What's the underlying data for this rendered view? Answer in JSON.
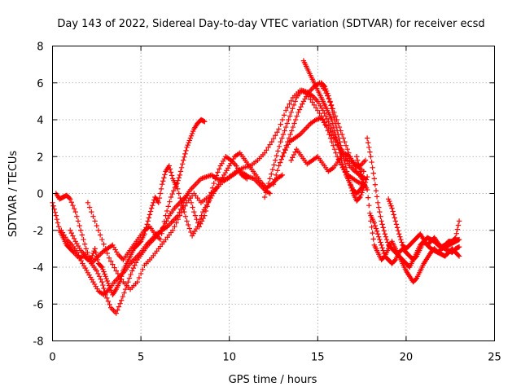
{
  "chart_data": {
    "type": "scatter",
    "title": "Day 143 of 2022, Sidereal Day-to-day VTEC variation (SDTVAR) for receiver ecsd",
    "xlabel": "GPS time / hours",
    "ylabel": "SDTVAR / TECUs",
    "xlim": [
      0,
      25
    ],
    "ylim": [
      -8,
      8
    ],
    "xticks": [
      "0",
      "5",
      "10",
      "15",
      "20",
      "25"
    ],
    "yticks": [
      "-8",
      "-6",
      "-4",
      "-2",
      "0",
      "2",
      "4",
      "6",
      "8"
    ],
    "grid": true,
    "marker": "+",
    "color": "#ff0000",
    "series": [
      {
        "x": [
          0.0,
          0.2,
          0.4,
          0.6,
          0.8,
          1.0,
          1.2,
          1.5,
          1.8,
          2.0,
          2.2,
          2.4,
          2.6,
          2.8,
          3.0,
          3.2,
          3.4,
          3.6,
          3.8,
          4.0,
          4.2,
          4.4,
          4.6,
          4.8,
          5.0,
          5.2,
          5.4,
          5.6,
          5.8,
          6.0,
          6.2,
          6.4,
          6.6,
          6.8,
          7.0,
          7.2,
          7.4,
          7.6,
          7.8,
          8.0,
          8.2,
          8.4,
          8.6
        ],
        "y": [
          -0.5,
          -1.2,
          -2.0,
          -2.4,
          -2.8,
          -3.0,
          -3.2,
          -3.5,
          -3.4,
          -3.6,
          -3.5,
          -3.0,
          -3.8,
          -4.0,
          -4.5,
          -5.0,
          -5.5,
          -5.2,
          -4.8,
          -4.2,
          -3.8,
          -3.4,
          -3.0,
          -2.8,
          -2.6,
          -2.2,
          -1.5,
          -0.8,
          -0.2,
          -0.5,
          0.5,
          1.2,
          1.5,
          0.8,
          0.4,
          1.0,
          1.8,
          2.5,
          3.0,
          3.5,
          3.8,
          4.0,
          3.9
        ]
      },
      {
        "x": [
          0.2,
          0.4,
          0.6,
          0.8,
          1.0,
          1.3,
          1.6,
          1.9,
          2.2,
          2.5,
          2.8,
          3.0,
          3.3,
          3.6,
          3.9,
          4.2,
          4.5,
          4.8,
          5.1,
          5.4,
          5.7,
          6.0,
          6.3,
          6.6,
          6.9,
          7.2,
          7.5,
          7.8,
          8.1,
          8.4,
          8.7,
          9.0,
          9.3,
          9.6,
          9.9,
          10.2,
          10.5,
          10.8,
          11.1,
          11.4,
          11.7,
          12.0,
          12.3
        ],
        "y": [
          0.0,
          -0.3,
          -0.2,
          -0.1,
          -0.3,
          -1.0,
          -2.0,
          -3.0,
          -3.8,
          -4.2,
          -4.8,
          -5.5,
          -6.2,
          -6.5,
          -5.8,
          -5.0,
          -4.2,
          -3.6,
          -3.2,
          -2.8,
          -2.5,
          -2.2,
          -1.8,
          -1.2,
          -0.8,
          -0.5,
          -0.2,
          0.2,
          0.5,
          0.8,
          0.9,
          1.0,
          0.8,
          0.7,
          0.8,
          1.0,
          1.2,
          1.1,
          0.9,
          0.8,
          0.5,
          0.2,
          0.0
        ]
      },
      {
        "x": [
          0.5,
          0.8,
          1.1,
          1.4,
          1.7,
          2.0,
          2.3,
          2.6,
          2.9,
          3.2,
          3.5,
          3.8,
          4.1,
          4.4,
          4.7,
          5.0,
          5.3,
          5.6,
          5.9,
          6.2,
          6.5,
          6.8,
          7.1,
          7.4,
          7.7,
          8.0,
          8.3,
          8.6,
          8.9,
          9.2,
          9.5,
          9.8,
          10.1,
          10.4,
          10.7,
          11.0
        ],
        "y": [
          -2.0,
          -2.5,
          -2.8,
          -3.2,
          -3.8,
          -4.3,
          -4.8,
          -5.3,
          -5.5,
          -5.2,
          -4.8,
          -4.5,
          -4.2,
          -3.8,
          -3.5,
          -3.2,
          -2.8,
          -2.5,
          -2.2,
          -2.0,
          -1.8,
          -1.5,
          -1.2,
          -0.5,
          0.0,
          -1.0,
          -1.8,
          -1.2,
          -0.2,
          0.8,
          1.5,
          2.0,
          1.8,
          1.5,
          1.0,
          0.8
        ]
      },
      {
        "x": [
          1.0,
          1.3,
          1.6,
          1.9,
          2.2,
          2.5,
          2.8,
          3.1,
          3.4,
          3.7,
          4.0,
          4.3,
          4.6,
          4.9,
          5.2,
          5.5,
          5.8,
          6.1,
          6.4,
          6.7,
          7.0,
          7.3,
          7.6,
          7.9,
          8.2,
          8.5,
          8.8,
          9.1,
          9.4,
          9.7,
          10.0,
          10.3,
          10.6,
          10.9,
          11.2,
          11.5,
          11.8,
          12.1,
          12.4,
          12.7,
          13.0
        ],
        "y": [
          -2.0,
          -2.6,
          -3.1,
          -3.4,
          -3.8,
          -3.5,
          -3.2,
          -3.0,
          -2.8,
          -3.3,
          -3.6,
          -3.2,
          -2.8,
          -2.4,
          -2.0,
          -1.8,
          -2.2,
          -2.5,
          -1.2,
          -0.2,
          0.5,
          -0.5,
          -1.5,
          -2.3,
          -1.8,
          -1.0,
          -0.5,
          0.0,
          0.5,
          1.0,
          1.5,
          2.0,
          2.2,
          1.8,
          1.4,
          1.0,
          0.6,
          0.3,
          0.5,
          0.8,
          1.0
        ]
      },
      {
        "x": [
          2.0,
          2.4,
          2.8,
          3.2,
          3.6,
          4.0,
          4.4,
          4.8,
          5.2,
          5.6,
          6.0,
          6.4,
          6.8,
          7.2,
          7.6,
          8.0,
          8.4,
          8.8,
          9.2,
          9.6,
          10.0,
          10.4,
          10.8,
          11.2,
          11.6,
          12.0,
          12.4,
          12.8,
          13.2,
          13.6,
          14.0,
          14.4,
          14.8,
          15.2,
          15.6,
          16.0,
          16.4,
          16.8,
          17.2,
          17.6
        ],
        "y": [
          -0.5,
          -1.5,
          -2.5,
          -3.5,
          -4.2,
          -4.8,
          -5.2,
          -4.8,
          -3.9,
          -3.5,
          -3.0,
          -2.5,
          -2.0,
          -1.2,
          -0.5,
          0.0,
          -0.5,
          -0.2,
          0.2,
          0.6,
          0.9,
          1.2,
          1.4,
          1.5,
          1.8,
          2.2,
          2.8,
          3.5,
          4.5,
          5.2,
          5.6,
          5.4,
          4.8,
          4.2,
          3.5,
          2.8,
          2.2,
          1.8,
          1.5,
          1.2
        ]
      },
      {
        "x": [
          12.0,
          12.3,
          12.6,
          12.9,
          13.2,
          13.5,
          13.8,
          14.1,
          14.4,
          14.7,
          15.0,
          15.3,
          15.6,
          15.9,
          16.2,
          16.5,
          16.8,
          17.1,
          17.4,
          17.7
        ],
        "y": [
          -0.2,
          0.8,
          1.8,
          2.8,
          3.6,
          4.4,
          5.2,
          5.6,
          5.5,
          5.3,
          5.0,
          4.5,
          3.9,
          3.2,
          2.6,
          2.0,
          1.5,
          1.2,
          1.0,
          0.8
        ]
      },
      {
        "x": [
          12.5,
          12.8,
          13.1,
          13.4,
          13.7,
          14.0,
          14.3,
          14.6,
          14.9,
          15.2,
          15.5,
          15.8,
          16.1,
          16.4,
          16.7,
          17.0,
          17.3,
          17.6
        ],
        "y": [
          0.5,
          1.5,
          2.2,
          2.8,
          3.0,
          3.2,
          3.5,
          3.8,
          4.0,
          4.1,
          3.6,
          2.8,
          2.0,
          1.4,
          1.0,
          0.8,
          0.6,
          0.5
        ]
      },
      {
        "x": [
          13.0,
          13.3,
          13.6,
          13.9,
          14.2,
          14.5,
          14.8,
          15.1,
          15.4,
          15.7,
          16.0,
          16.3,
          16.6,
          16.9,
          17.2,
          17.5
        ],
        "y": [
          2.0,
          2.8,
          3.6,
          4.4,
          5.0,
          5.5,
          5.8,
          6.0,
          5.6,
          5.0,
          4.2,
          3.4,
          2.6,
          1.8,
          1.2,
          0.8
        ]
      },
      {
        "x": [
          14.2,
          14.4,
          14.6,
          14.8,
          15.0,
          15.2,
          15.4,
          15.6,
          15.8,
          16.0,
          16.2,
          16.4,
          16.6,
          16.8,
          17.0,
          17.2,
          17.4,
          17.6
        ],
        "y": [
          7.2,
          6.8,
          6.4,
          6.0,
          5.6,
          5.2,
          4.8,
          4.4,
          4.0,
          3.2,
          2.4,
          1.6,
          1.0,
          0.6,
          0.2,
          0.0,
          0.2,
          0.5
        ]
      },
      {
        "x": [
          15.2,
          15.4,
          15.6,
          15.8,
          16.0,
          16.2,
          16.4,
          16.6,
          16.8,
          17.0,
          17.2,
          17.4,
          17.6,
          17.8
        ],
        "y": [
          6.0,
          5.8,
          5.3,
          4.6,
          3.8,
          3.0,
          2.2,
          1.4,
          0.6,
          0.0,
          -0.4,
          -0.2,
          0.3,
          0.9
        ]
      },
      {
        "x": [
          13.5,
          13.8,
          14.1,
          14.4,
          14.7,
          15.0,
          15.3,
          15.6,
          15.9,
          16.2,
          16.5,
          16.8,
          17.1,
          17.4,
          17.7
        ],
        "y": [
          1.8,
          2.4,
          2.0,
          1.6,
          1.8,
          2.0,
          1.6,
          1.2,
          1.4,
          1.8,
          2.2,
          2.0,
          1.6,
          1.5,
          1.8
        ]
      },
      {
        "x": [
          17.2,
          17.4,
          17.6,
          17.8,
          18.0,
          18.2,
          18.4,
          18.6,
          18.8,
          19.0,
          19.2,
          19.4,
          19.6,
          19.8,
          20.0,
          20.2,
          20.4,
          20.6,
          20.8,
          21.0,
          21.2,
          21.4,
          21.6,
          21.8,
          22.0,
          22.2,
          22.4,
          22.6,
          22.8,
          23.0
        ],
        "y": [
          2.0,
          1.2,
          0.6,
          0.2,
          -1.5,
          -2.8,
          -3.2,
          -3.6,
          -3.4,
          -3.0,
          -2.6,
          -3.0,
          -3.4,
          -3.8,
          -4.2,
          -4.5,
          -4.8,
          -4.6,
          -4.2,
          -3.8,
          -3.5,
          -3.2,
          -3.0,
          -3.2,
          -3.3,
          -3.4,
          -3.2,
          -3.0,
          -3.2,
          -3.4
        ]
      },
      {
        "x": [
          17.8,
          18.0,
          18.2,
          18.4,
          18.6,
          18.8,
          19.0,
          19.2,
          19.4,
          19.6,
          19.8,
          20.0,
          20.2,
          20.4,
          20.6,
          20.8,
          21.0,
          21.2,
          21.4,
          21.6,
          21.8,
          22.0,
          22.2,
          22.4,
          22.6,
          22.8,
          23.0
        ],
        "y": [
          3.0,
          2.0,
          0.8,
          -0.5,
          -1.5,
          -2.2,
          -2.8,
          -3.0,
          -3.2,
          -3.4,
          -3.6,
          -3.8,
          -4.0,
          -3.6,
          -3.2,
          -2.8,
          -2.6,
          -2.8,
          -3.0,
          -3.1,
          -3.2,
          -3.0,
          -2.9,
          -2.8,
          -2.7,
          -2.6,
          -2.5
        ]
      },
      {
        "x": [
          18.0,
          18.2,
          18.4,
          18.6,
          18.8,
          19.0,
          19.2,
          19.4,
          19.6,
          19.8,
          20.0,
          20.2,
          20.4,
          20.6,
          20.8,
          21.0,
          21.2,
          21.4,
          21.6,
          21.8,
          22.0,
          22.2,
          22.4,
          22.6,
          22.8,
          23.0
        ],
        "y": [
          -1.2,
          -1.6,
          -2.2,
          -2.8,
          -3.4,
          -3.6,
          -3.8,
          -3.6,
          -3.2,
          -3.0,
          -3.2,
          -3.4,
          -3.6,
          -3.4,
          -3.0,
          -2.6,
          -2.4,
          -2.5,
          -2.6,
          -2.8,
          -2.9,
          -3.0,
          -3.1,
          -3.2,
          -3.0,
          -2.9
        ]
      },
      {
        "x": [
          19.0,
          19.2,
          19.4,
          19.6,
          19.8,
          20.0,
          20.2,
          20.4,
          20.6,
          20.8,
          21.0,
          21.2,
          21.4,
          21.6,
          21.8,
          22.0,
          22.2,
          22.4,
          22.6,
          22.8,
          23.0
        ],
        "y": [
          -0.3,
          -0.8,
          -1.5,
          -2.2,
          -2.8,
          -3.0,
          -2.8,
          -2.6,
          -2.4,
          -2.2,
          -2.5,
          -2.8,
          -2.6,
          -2.4,
          -2.7,
          -2.9,
          -2.8,
          -2.6,
          -2.6,
          -2.4,
          -1.5
        ]
      }
    ]
  }
}
